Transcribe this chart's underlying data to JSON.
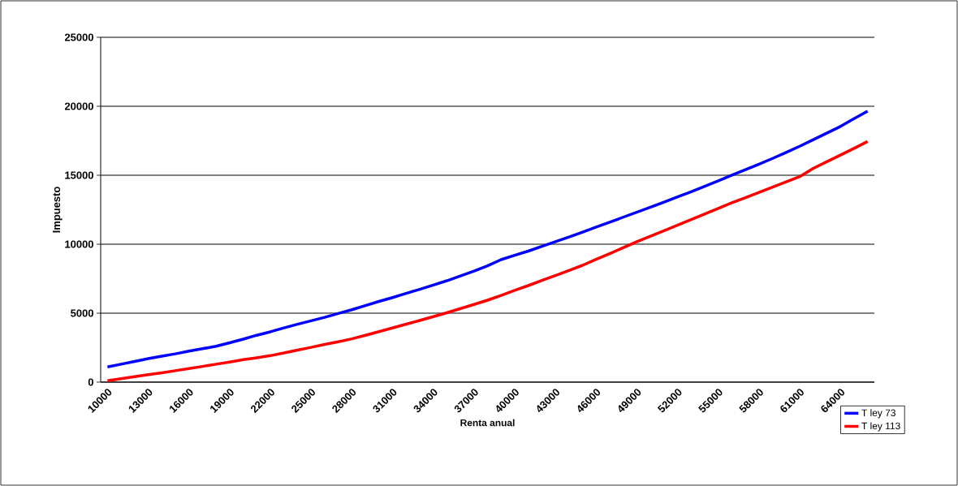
{
  "chart_data": {
    "type": "line",
    "xlabel": "Renta anual",
    "ylabel": "Impuesto",
    "categories": [
      "10000",
      null,
      null,
      "13000",
      null,
      null,
      "16000",
      null,
      null,
      "19000",
      null,
      null,
      "22000",
      null,
      null,
      "25000",
      null,
      null,
      "28000",
      null,
      null,
      "31000",
      null,
      null,
      "34000",
      null,
      null,
      "37000",
      null,
      null,
      "40000",
      null,
      null,
      "43000",
      null,
      null,
      "46000",
      null,
      null,
      "49000",
      null,
      null,
      "52000",
      null,
      null,
      "55000",
      null,
      null,
      "58000",
      null,
      null,
      "61000",
      null,
      null,
      "64000",
      null,
      null
    ],
    "series": [
      {
        "name": "T ley 73",
        "color": "#0000ff",
        "values": [
          1100,
          1300,
          1500,
          1700,
          1880,
          2050,
          2250,
          2420,
          2600,
          2850,
          3120,
          3400,
          3650,
          3930,
          4200,
          4450,
          4700,
          4980,
          5250,
          5550,
          5850,
          6130,
          6430,
          6730,
          7040,
          7350,
          7700,
          8050,
          8430,
          8880,
          9200,
          9500,
          9850,
          10180,
          10520,
          10880,
          11240,
          11600,
          11960,
          12320,
          12680,
          13050,
          13430,
          13800,
          14200,
          14600,
          15000,
          15400,
          15800,
          16220,
          16650,
          17100,
          17580,
          18060,
          18540,
          19100,
          19650
        ]
      },
      {
        "name": "T ley 113",
        "color": "#ff0000",
        "values": [
          100,
          250,
          400,
          540,
          680,
          830,
          990,
          1140,
          1300,
          1460,
          1630,
          1770,
          1920,
          2120,
          2320,
          2520,
          2730,
          2930,
          3140,
          3400,
          3660,
          3930,
          4200,
          4470,
          4750,
          5030,
          5330,
          5630,
          5940,
          6290,
          6650,
          7000,
          7370,
          7730,
          8100,
          8470,
          8900,
          9320,
          9750,
          10180,
          10580,
          10980,
          11380,
          11780,
          12190,
          12600,
          13000,
          13380,
          13760,
          14140,
          14520,
          14900,
          15500,
          15980,
          16460,
          16950,
          17450
        ]
      }
    ],
    "ylim": [
      0,
      25000
    ],
    "yticks": [
      0,
      5000,
      10000,
      15000,
      20000,
      25000
    ],
    "grid": "y",
    "legend": "bottom right"
  }
}
